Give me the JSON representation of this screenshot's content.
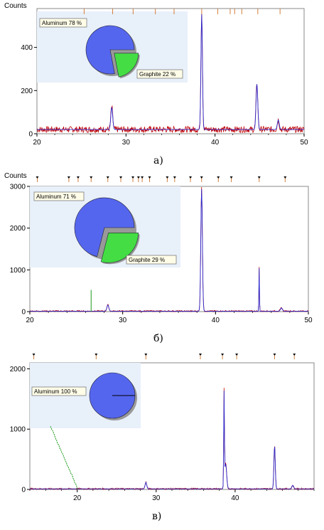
{
  "colors": {
    "observed": "#c00000",
    "fit": "#2a2ad0",
    "graphite_line": "#1a9a1a",
    "aluminum_slice": "#5566ee",
    "graphite_slice": "#44dd44",
    "inset_bg": "#e8f0fa",
    "tick_marker": "#d08040"
  },
  "chart_data": [
    {
      "type": "line",
      "caption": "а)",
      "ylabel": "Counts",
      "xlim": [
        20,
        50
      ],
      "ylim": [
        0,
        580
      ],
      "xticks": [
        20,
        30,
        40,
        50
      ],
      "yticks": [
        0,
        200,
        400
      ],
      "baseline": 20,
      "peaks": [
        {
          "x": 28.4,
          "height": 105,
          "width": 0.15
        },
        {
          "x": 38.5,
          "height": 545,
          "width": 0.12
        },
        {
          "x": 44.7,
          "height": 215,
          "width": 0.14
        },
        {
          "x": 47.1,
          "height": 45,
          "width": 0.15
        }
      ],
      "reference_ticks": [
        25.3,
        28.5,
        30.8,
        33.3,
        35.4,
        38.5,
        40.3,
        41.7,
        42.2,
        43.0,
        44.8,
        47.3
      ],
      "pie": {
        "slices": [
          {
            "label": "Aluminum 78 %",
            "value": 78
          },
          {
            "label": "Graphite 22 %",
            "value": 22
          }
        ]
      }
    },
    {
      "type": "line",
      "caption": "б)",
      "ylabel": "Counts",
      "xlim": [
        20,
        50
      ],
      "ylim": [
        0,
        3000
      ],
      "xticks": [
        20,
        30,
        40,
        50
      ],
      "yticks": [
        0,
        1000,
        2000,
        3000
      ],
      "baseline": 10,
      "peaks": [
        {
          "x": 28.4,
          "height": 150,
          "width": 0.15
        },
        {
          "x": 38.5,
          "height": 2980,
          "width": 0.12
        },
        {
          "x": 44.7,
          "height": 1050,
          "width": 0.04
        },
        {
          "x": 47.1,
          "height": 80,
          "width": 0.15
        }
      ],
      "graphite_peak": {
        "x": 26.6,
        "height": 520
      },
      "reference_ticks": [
        20.8,
        24.2,
        25.2,
        26.6,
        28.4,
        29.8,
        31.1,
        31.7,
        32.1,
        32.9,
        34.8,
        35.6,
        37.3,
        38.5,
        40.3,
        41.7,
        44.7,
        47.5
      ],
      "pie": {
        "slices": [
          {
            "label": "Aluminum 71 %",
            "value": 71
          },
          {
            "label": "Graphite 29 %",
            "value": 29
          }
        ]
      }
    },
    {
      "type": "line",
      "caption": "в)",
      "xlim": [
        14,
        50
      ],
      "ylim": [
        0,
        2100
      ],
      "xticks": [
        20,
        30,
        40
      ],
      "yticks": [
        0,
        1000,
        2000
      ],
      "baseline": 10,
      "peaks": [
        {
          "x": 28.7,
          "height": 110,
          "width": 0.15
        },
        {
          "x": 38.6,
          "height": 1540,
          "width": 0.06
        },
        {
          "x": 38.8,
          "height": 420,
          "width": 0.18
        },
        {
          "x": 45.0,
          "height": 730,
          "width": 0.12
        },
        {
          "x": 47.3,
          "height": 60,
          "width": 0.15
        }
      ],
      "background_line": {
        "x": [
          16.6,
          20.1
        ],
        "y": [
          1050,
          0
        ]
      },
      "reference_ticks": [
        14.5,
        22.4,
        28.7,
        35.6,
        38.4,
        40.2,
        45.0,
        47.5
      ],
      "pie": {
        "slices": [
          {
            "label": "Aluminum 100 %",
            "value": 100
          }
        ]
      }
    }
  ]
}
